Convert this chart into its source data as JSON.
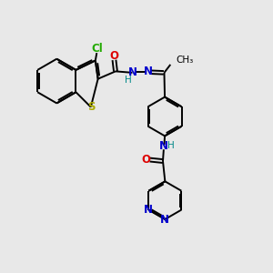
{
  "bg_color": "#e8e8e8",
  "atom_colors": {
    "C": "#000000",
    "N": "#0000cc",
    "O": "#dd0000",
    "S": "#aaaa00",
    "Cl": "#22aa00",
    "H": "#008888"
  },
  "bond_color": "#000000",
  "bond_width": 1.4,
  "figsize": [
    3.0,
    3.0
  ],
  "dpi": 100
}
